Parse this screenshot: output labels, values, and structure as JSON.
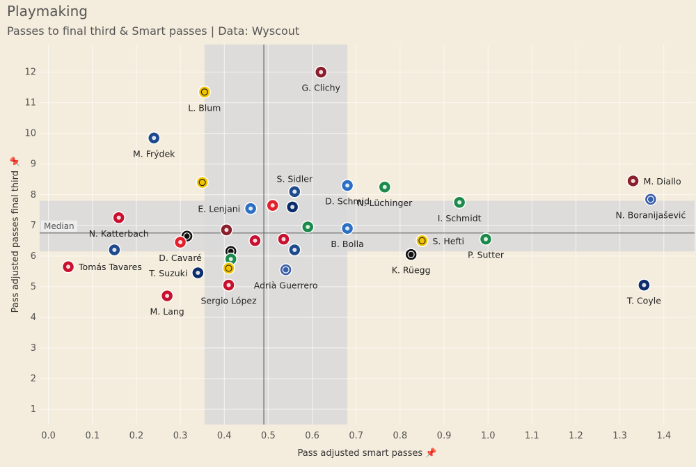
{
  "title": "Playmaking",
  "subtitle": "Passes to final third & Smart passes | Data: Wyscout",
  "colors": {
    "background": "#f4ecdc",
    "band": "#d9d9d9",
    "median_line": "#666666",
    "grid": "#ffffff"
  },
  "chart_data": {
    "type": "scatter",
    "xlabel": "Pass adjusted smart passes",
    "ylabel": "Pass adjusted passes final third",
    "xlim": [
      -0.02,
      1.47
    ],
    "ylim": [
      0.5,
      12.9
    ],
    "xticks": [
      "0.0",
      "0.1",
      "0.2",
      "0.3",
      "0.4",
      "0.5",
      "0.6",
      "0.7",
      "0.8",
      "0.9",
      "1.0",
      "1.1",
      "1.2",
      "1.3",
      "1.4"
    ],
    "yticks": [
      1,
      2,
      3,
      4,
      5,
      6,
      7,
      8,
      9,
      10,
      11,
      12
    ],
    "grid": true,
    "median_label": "Median",
    "x_median": 0.49,
    "y_median": 6.75,
    "x_band": [
      0.355,
      0.68
    ],
    "y_band": [
      6.15,
      7.8
    ],
    "teams": {
      "Servette": {
        "color": "#8b1e2b",
        "icon": "servette-crest-icon"
      },
      "YB": {
        "color": "#f2c500",
        "icon": "young-boys-crest-icon"
      },
      "Luzern": {
        "color": "#1e4a8c",
        "icon": "luzern-crest-icon"
      },
      "Basel": {
        "color": "#c8102e",
        "icon": "basel-crest-icon"
      },
      "Lugano": {
        "color": "#111111",
        "icon": "lugano-crest-icon"
      },
      "Lausanne": {
        "color": "#0c2d6b",
        "icon": "lausanne-crest-icon"
      },
      "GC": {
        "color": "#2a6fc4",
        "icon": "grasshoppers-crest-icon"
      },
      "StGallen": {
        "color": "#1b8a4a",
        "icon": "st-gallen-crest-icon"
      },
      "Sion": {
        "color": "#e0202a",
        "icon": "sion-crest-icon"
      },
      "Zurich": {
        "color": "#3b5fa8",
        "icon": "zurich-crest-icon"
      }
    },
    "points": [
      {
        "x": 0.62,
        "y": 12.0,
        "team": "Servette",
        "label": "G. Clichy",
        "lpos": "below"
      },
      {
        "x": 0.355,
        "y": 11.35,
        "team": "YB",
        "label": "L. Blum",
        "lpos": "below"
      },
      {
        "x": 0.24,
        "y": 9.85,
        "team": "Luzern",
        "label": "M. Frýdek",
        "lpos": "below"
      },
      {
        "x": 0.35,
        "y": 8.4,
        "team": "YB",
        "label": "",
        "lpos": "none"
      },
      {
        "x": 0.56,
        "y": 8.1,
        "team": "Luzern",
        "label": "S. Sidler",
        "lpos": "above"
      },
      {
        "x": 0.68,
        "y": 8.3,
        "team": "GC",
        "label": "D. Schmid",
        "lpos": "below"
      },
      {
        "x": 0.765,
        "y": 8.25,
        "team": "StGallen",
        "label": "N. Lüchinger",
        "lpos": "below"
      },
      {
        "x": 0.935,
        "y": 7.75,
        "team": "StGallen",
        "label": "I. Schmidt",
        "lpos": "below"
      },
      {
        "x": 1.33,
        "y": 8.45,
        "team": "Servette",
        "label": "M. Diallo",
        "lpos": "right"
      },
      {
        "x": 1.37,
        "y": 7.85,
        "team": "Zurich",
        "label": "N. Boranijašević",
        "lpos": "below"
      },
      {
        "x": 0.46,
        "y": 7.55,
        "team": "GC",
        "label": "E. Lenjani",
        "lpos": "left"
      },
      {
        "x": 0.51,
        "y": 7.65,
        "team": "Sion",
        "label": "",
        "lpos": "none"
      },
      {
        "x": 0.555,
        "y": 7.6,
        "team": "Lausanne",
        "label": "",
        "lpos": "none"
      },
      {
        "x": 0.16,
        "y": 7.25,
        "team": "Basel",
        "label": "N. Katterbach",
        "lpos": "below"
      },
      {
        "x": 0.59,
        "y": 6.95,
        "team": "StGallen",
        "label": "",
        "lpos": "none"
      },
      {
        "x": 0.68,
        "y": 6.9,
        "team": "GC",
        "label": "B. Bolla",
        "lpos": "below"
      },
      {
        "x": 0.405,
        "y": 6.85,
        "team": "Servette",
        "label": "",
        "lpos": "none"
      },
      {
        "x": 0.315,
        "y": 6.65,
        "team": "Lugano",
        "label": "",
        "lpos": "none"
      },
      {
        "x": 0.3,
        "y": 6.45,
        "team": "Sion",
        "label": "D. Cavaré",
        "lpos": "below"
      },
      {
        "x": 0.47,
        "y": 6.5,
        "team": "Basel",
        "label": "",
        "lpos": "none"
      },
      {
        "x": 0.535,
        "y": 6.55,
        "team": "Basel",
        "label": "",
        "lpos": "none"
      },
      {
        "x": 0.85,
        "y": 6.5,
        "team": "YB",
        "label": "S. Hefti",
        "lpos": "right"
      },
      {
        "x": 0.995,
        "y": 6.55,
        "team": "StGallen",
        "label": "P. Sutter",
        "lpos": "below"
      },
      {
        "x": 0.15,
        "y": 6.2,
        "team": "Luzern",
        "label": "",
        "lpos": "none"
      },
      {
        "x": 0.415,
        "y": 6.15,
        "team": "Lugano",
        "label": "",
        "lpos": "none"
      },
      {
        "x": 0.56,
        "y": 6.2,
        "team": "Luzern",
        "label": "",
        "lpos": "none"
      },
      {
        "x": 0.825,
        "y": 6.05,
        "team": "Lugano",
        "label": "K. Rüegg",
        "lpos": "below"
      },
      {
        "x": 0.415,
        "y": 5.9,
        "team": "StGallen",
        "label": "",
        "lpos": "none"
      },
      {
        "x": 0.045,
        "y": 5.65,
        "team": "Basel",
        "label": "Tomás Tavares",
        "lpos": "right"
      },
      {
        "x": 0.41,
        "y": 5.6,
        "team": "YB",
        "label": "",
        "lpos": "none"
      },
      {
        "x": 0.34,
        "y": 5.45,
        "team": "Lausanne",
        "label": "T. Suzuki",
        "lpos": "left"
      },
      {
        "x": 0.54,
        "y": 5.55,
        "team": "Zurich",
        "label": "Adrià Guerrero",
        "lpos": "below"
      },
      {
        "x": 1.355,
        "y": 5.05,
        "team": "Lausanne",
        "label": "T. Coyle",
        "lpos": "below"
      },
      {
        "x": 0.41,
        "y": 5.05,
        "team": "Basel",
        "label": "Sergio López",
        "lpos": "below"
      },
      {
        "x": 0.27,
        "y": 4.7,
        "team": "Basel",
        "label": "M. Lang",
        "lpos": "below"
      }
    ]
  }
}
